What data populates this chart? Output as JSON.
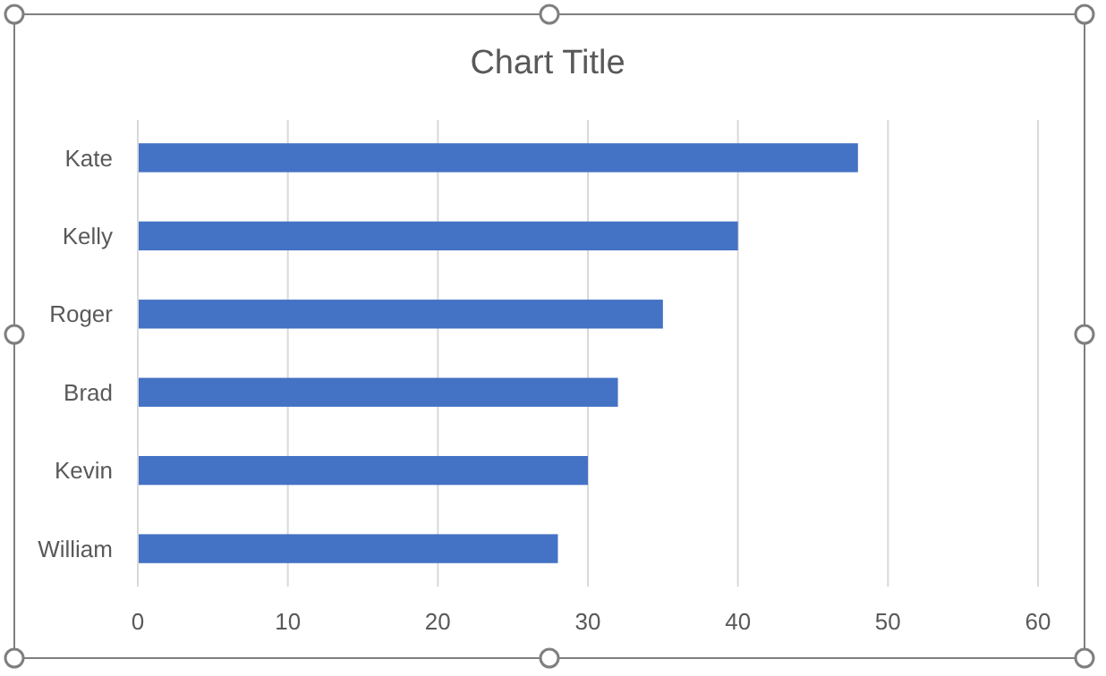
{
  "chart_data": {
    "type": "bar",
    "orientation": "horizontal",
    "title": "Chart Title",
    "categories": [
      "Kate",
      "Kelly",
      "Roger",
      "Brad",
      "Kevin",
      "William"
    ],
    "values": [
      48,
      40,
      35,
      32,
      30,
      28
    ],
    "color": "#4472c4",
    "xlim": [
      0,
      60
    ],
    "xticks": [
      0,
      10,
      20,
      30,
      40,
      50,
      60
    ],
    "grid": "x"
  }
}
